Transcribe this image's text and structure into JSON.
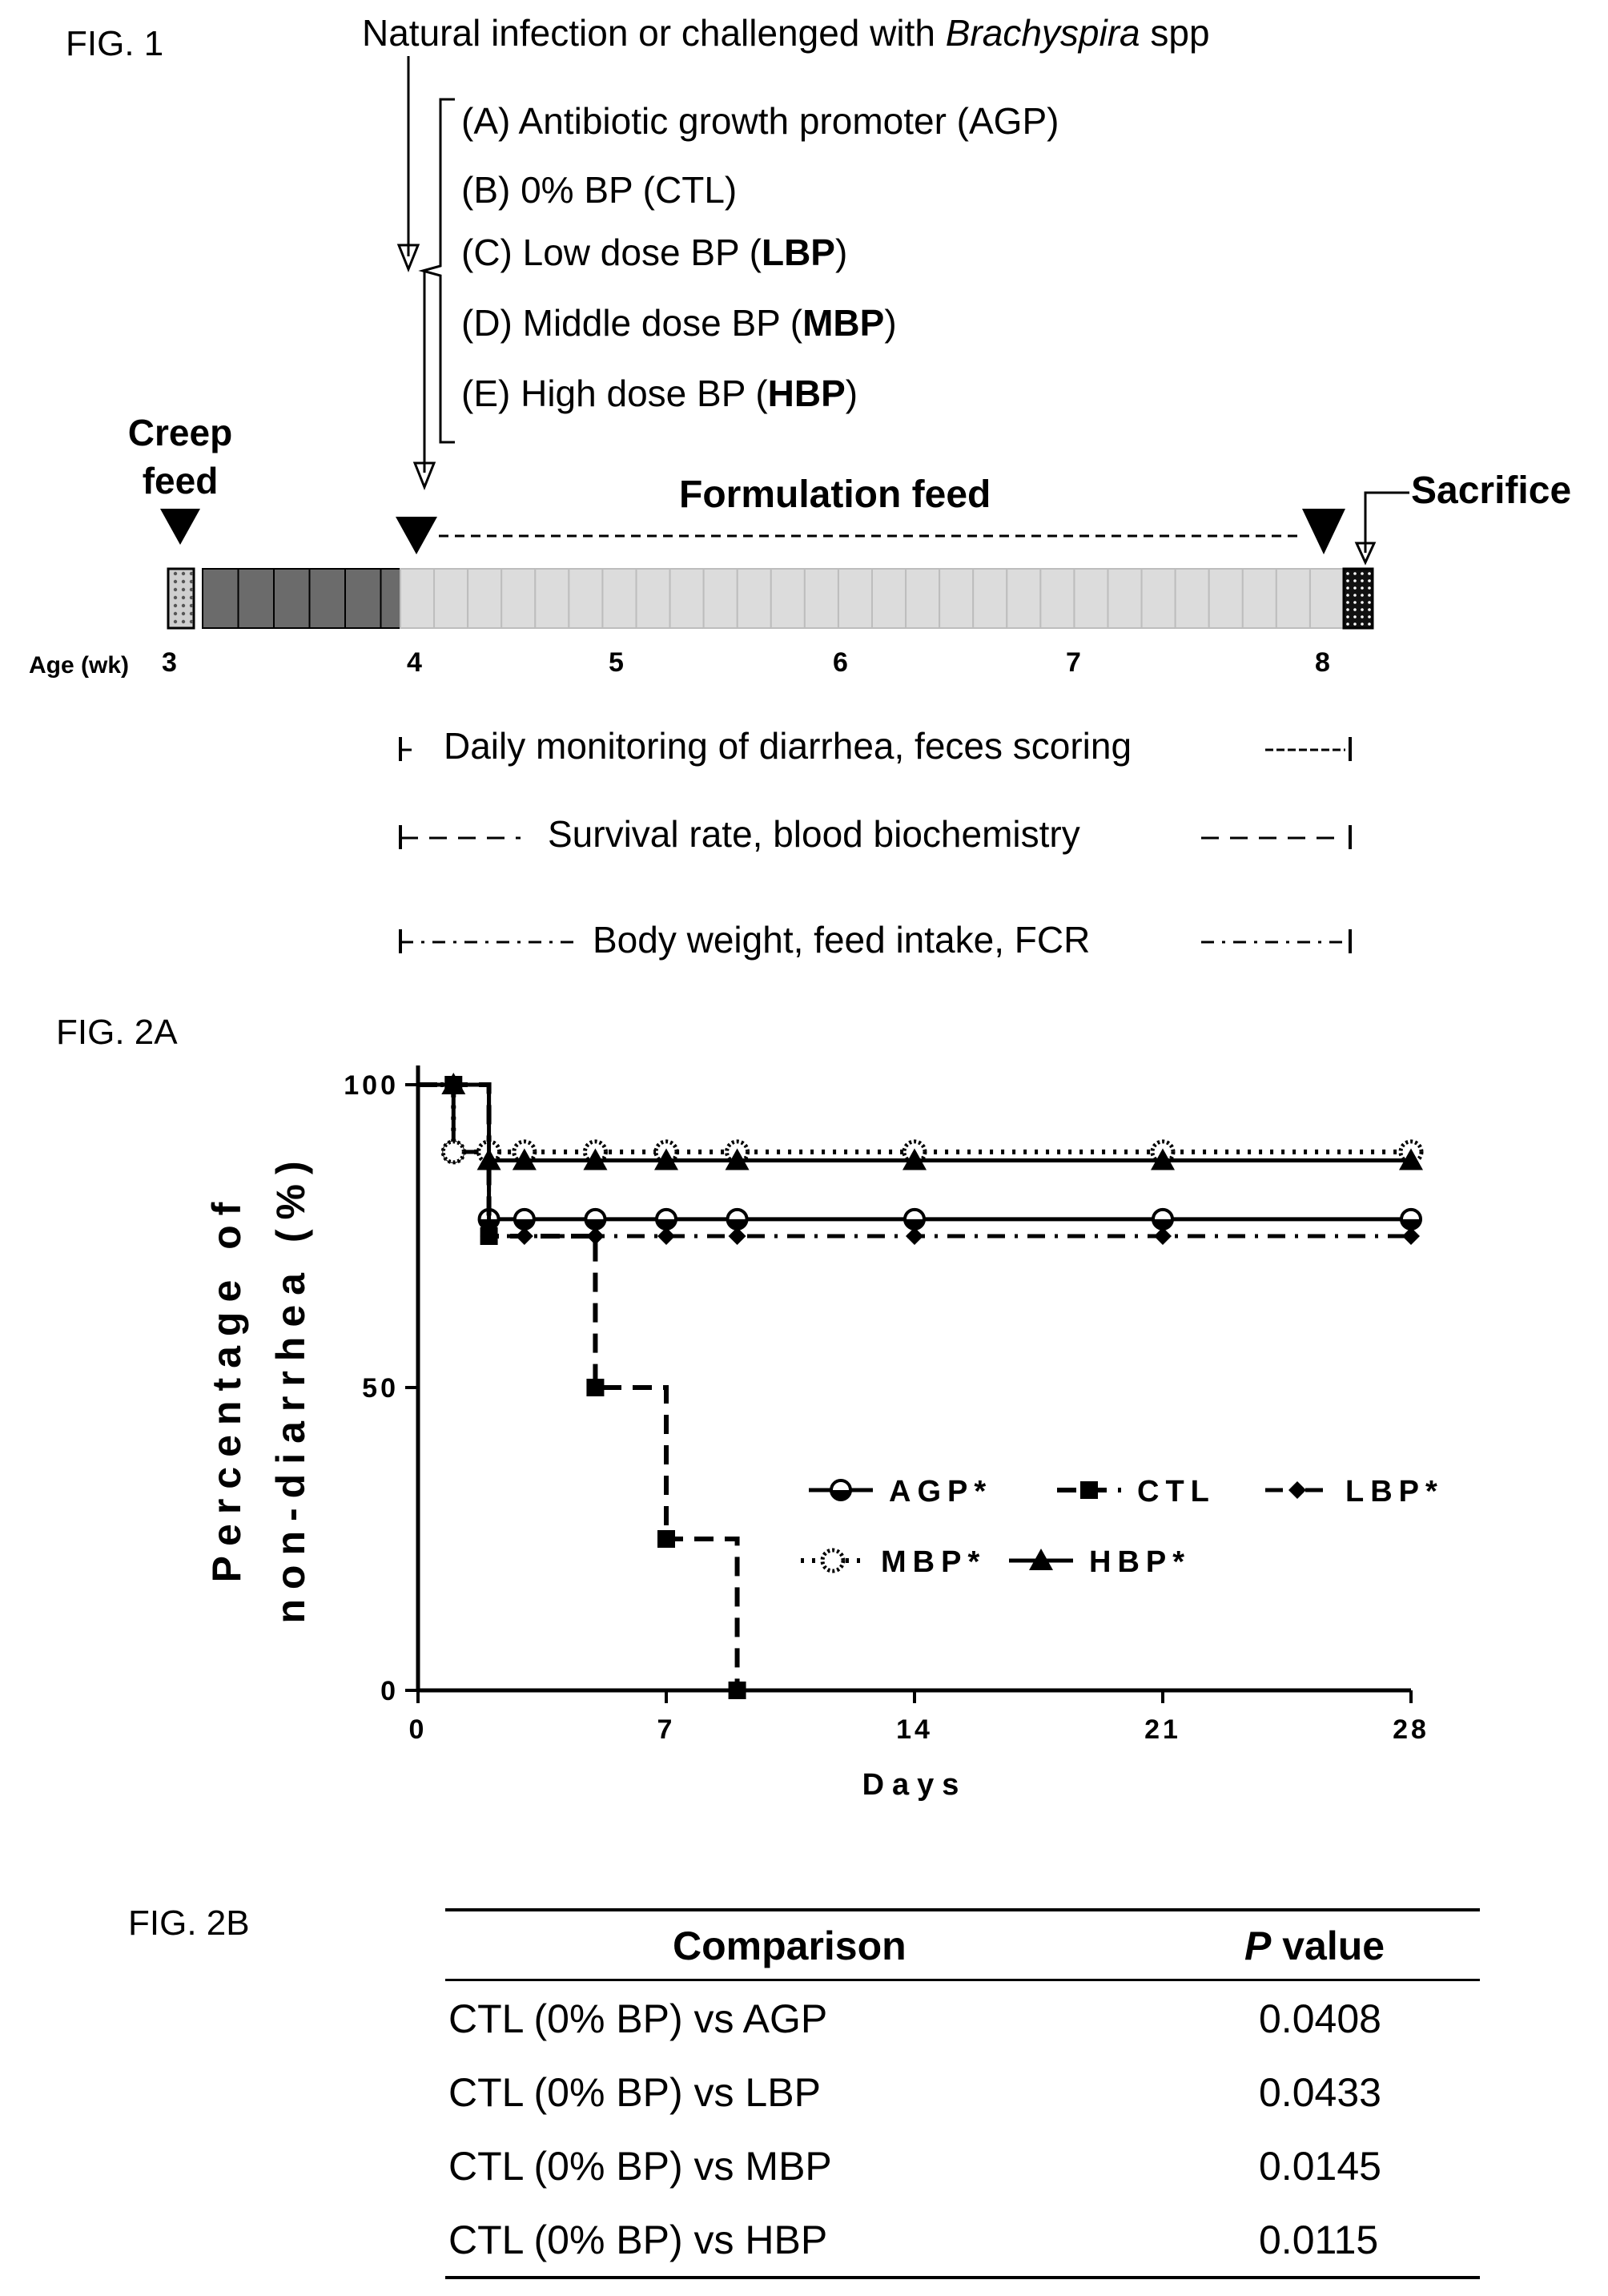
{
  "fig1": {
    "label": "FIG. 1",
    "challenge_prefix": "Natural  infection or challenged with ",
    "challenge_italic": "Brachyspira",
    "challenge_suffix": " spp",
    "groups": [
      {
        "text": "(A) Antibiotic growth promoter (AGP)",
        "bold": ""
      },
      {
        "text": "(B) 0% BP (CTL)",
        "bold": ""
      },
      {
        "text": "(C) Low dose BP  (",
        "bold": "LBP",
        "tail": ")"
      },
      {
        "text": "(D) Middle dose BP  (",
        "bold": "MBP",
        "tail": ")"
      },
      {
        "text": "(E) High dose BP  (",
        "bold": "HBP",
        "tail": ")"
      }
    ],
    "creep_feed_line1": "Creep",
    "creep_feed_line2": "feed",
    "formulation_feed": "Formulation feed",
    "sacrifice": "Sacrifice",
    "age_label": "Age (wk)",
    "ages": [
      "3",
      "4",
      "5",
      "6",
      "7",
      "8"
    ],
    "monitoring": [
      "Daily monitoring of diarrhea, feces scoring",
      "Survival rate, blood biochemistry",
      "Body weight, feed intake, FCR"
    ]
  },
  "fig2a": {
    "label": "FIG. 2A"
  },
  "chart_data": {
    "type": "line",
    "xlabel": "Days",
    "ylabel_line1": "Percentage of",
    "ylabel_line2": "non-diarrhea (%)",
    "xlim": [
      0,
      28
    ],
    "ylim": [
      0,
      100
    ],
    "xticks": [
      "0",
      "7",
      "14",
      "21",
      "28"
    ],
    "yticks": [
      "0",
      "50",
      "100"
    ],
    "step": true,
    "series": [
      {
        "name": "AGP*",
        "marker": "half-circle",
        "x": [
          0,
          1,
          2,
          3,
          5,
          7,
          9,
          14,
          21,
          28
        ],
        "y": [
          100,
          88.9,
          77.8,
          77.8,
          77.8,
          77.8,
          77.8,
          77.8,
          77.8,
          77.8
        ],
        "marker_x": [
          1,
          2,
          3,
          5,
          7,
          9,
          14,
          21,
          28
        ]
      },
      {
        "name": "CTL",
        "marker": "square",
        "x": [
          0,
          1,
          2,
          5,
          7,
          9
        ],
        "y": [
          100,
          100,
          75,
          50,
          25,
          0
        ],
        "marker_x": [
          1,
          2,
          5,
          7,
          9
        ]
      },
      {
        "name": "LBP*",
        "marker": "diamond",
        "x": [
          0,
          1,
          2,
          3,
          5,
          7,
          9,
          14,
          21,
          28
        ],
        "y": [
          100,
          100,
          75,
          75,
          75,
          75,
          75,
          75,
          75,
          75
        ],
        "marker_x": [
          1,
          2,
          3,
          5,
          7,
          9,
          14,
          21,
          28
        ]
      },
      {
        "name": "MBP*",
        "marker": "dotted-circle",
        "x": [
          0,
          1,
          2,
          3,
          5,
          7,
          9,
          14,
          21,
          28
        ],
        "y": [
          100,
          88.9,
          88.9,
          88.9,
          88.9,
          88.9,
          88.9,
          88.9,
          88.9,
          88.9
        ],
        "marker_x": [
          1,
          2,
          3,
          5,
          7,
          9,
          14,
          21,
          28
        ]
      },
      {
        "name": "HBP*",
        "marker": "triangle",
        "x": [
          0,
          1,
          2,
          3,
          5,
          7,
          9,
          14,
          21,
          28
        ],
        "y": [
          100,
          100,
          87.5,
          87.5,
          87.5,
          87.5,
          87.5,
          87.5,
          87.5,
          87.5
        ],
        "marker_x": [
          1,
          2,
          3,
          5,
          7,
          9,
          14,
          21,
          28
        ]
      }
    ],
    "legend": "inside-lower-right"
  },
  "fig2b": {
    "label": "FIG. 2B",
    "headers": [
      "Comparison",
      "P value"
    ],
    "header_italic": "P",
    "header_rest": " value",
    "rows": [
      [
        "CTL (0% BP) vs AGP",
        "0.0408"
      ],
      [
        "CTL (0% BP) vs LBP",
        "0.0433"
      ],
      [
        "CTL (0% BP) vs MBP",
        "0.0145"
      ],
      [
        "CTL (0% BP) vs HBP",
        "0.0115"
      ]
    ]
  }
}
